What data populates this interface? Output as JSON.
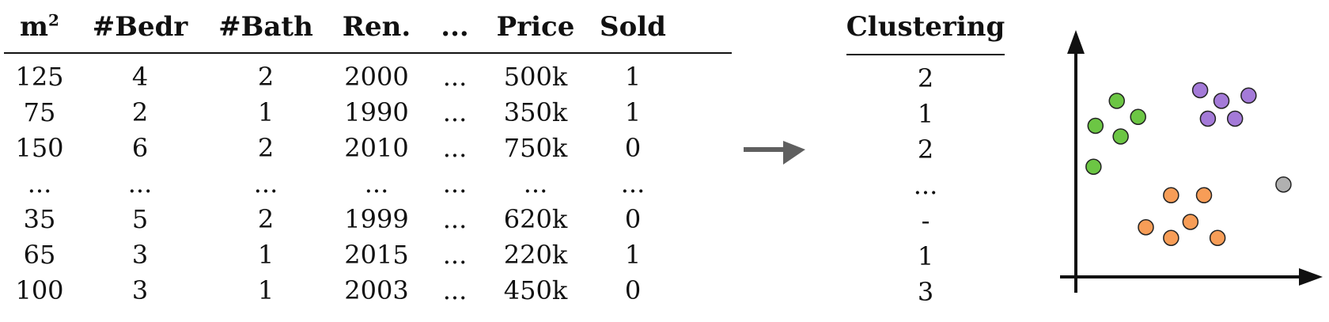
{
  "table": {
    "headers": [
      "m",
      "#Bedr",
      "#Bath",
      "Ren.",
      "...",
      "Price",
      "Sold"
    ],
    "header_superscript": "2",
    "rows": [
      [
        "125",
        "4",
        "2",
        "2000",
        "...",
        "500k",
        "1"
      ],
      [
        "75",
        "2",
        "1",
        "1990",
        "...",
        "350k",
        "1"
      ],
      [
        "150",
        "6",
        "2",
        "2010",
        "...",
        "750k",
        "0"
      ],
      [
        "...",
        "...",
        "...",
        "...",
        "...",
        "...",
        "..."
      ],
      [
        "35",
        "5",
        "2",
        "1999",
        "...",
        "620k",
        "0"
      ],
      [
        "65",
        "3",
        "1",
        "2015",
        "...",
        "220k",
        "1"
      ],
      [
        "100",
        "3",
        "1",
        "2003",
        "...",
        "450k",
        "0"
      ]
    ]
  },
  "clustering": {
    "header": "Clustering",
    "values": [
      "2",
      "1",
      "2",
      "...",
      "-",
      "1",
      "3"
    ]
  },
  "colors": {
    "arrow": "#5f5f5f",
    "green": "#6cc644",
    "purple": "#a47ad8",
    "orange": "#f79d57",
    "gray": "#b0b0b0",
    "outline": "#222222"
  },
  "chart_data": {
    "type": "scatter",
    "xlabel": "",
    "ylabel": "",
    "grid": false,
    "series": [
      {
        "color": "green",
        "points": [
          [
            1.5,
            9.0
          ],
          [
            0.4,
            7.6
          ],
          [
            1.7,
            7.0
          ],
          [
            2.6,
            8.1
          ],
          [
            0.3,
            5.3
          ]
        ]
      },
      {
        "color": "purple",
        "points": [
          [
            5.8,
            9.6
          ],
          [
            6.9,
            9.0
          ],
          [
            8.3,
            9.3
          ],
          [
            6.2,
            8.0
          ],
          [
            7.6,
            8.0
          ]
        ]
      },
      {
        "color": "orange",
        "points": [
          [
            4.3,
            3.7
          ],
          [
            6.0,
            3.7
          ],
          [
            3.0,
            1.9
          ],
          [
            5.3,
            2.2
          ],
          [
            4.3,
            1.3
          ],
          [
            6.7,
            1.3
          ]
        ]
      },
      {
        "color": "gray",
        "points": [
          [
            10.1,
            4.3
          ]
        ]
      }
    ]
  }
}
